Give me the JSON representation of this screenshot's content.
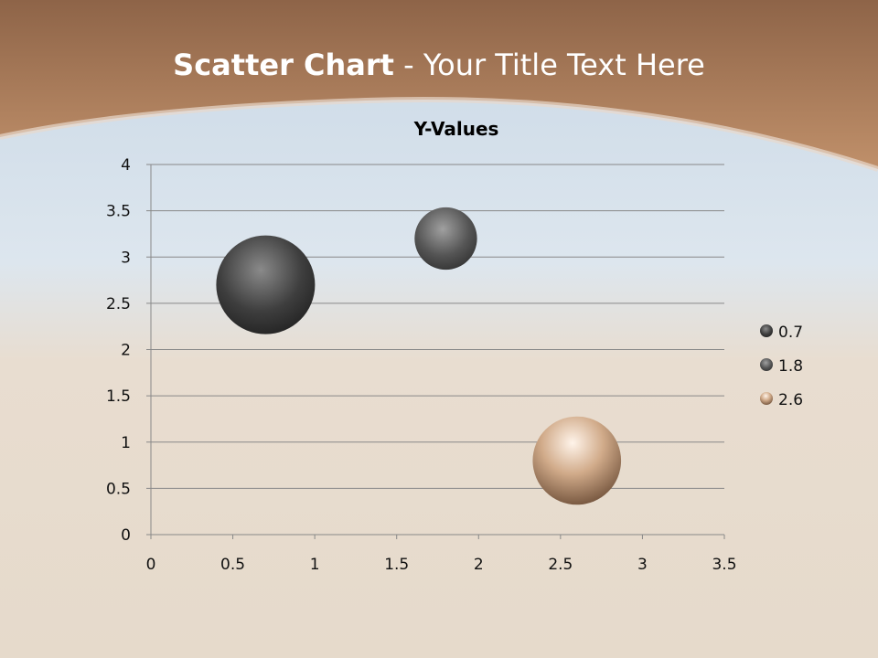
{
  "slide": {
    "title_bold": "Scatter Chart",
    "title_rest": " - Your Title Text Here"
  },
  "colors": {
    "header": "#a87b5a",
    "series": [
      "#4a4a4a",
      "#5a5a5a",
      "#c9a07e"
    ]
  },
  "chart_data": {
    "type": "bubble",
    "title": "Y-Values",
    "x": [
      0.7,
      1.8,
      2.6
    ],
    "y": [
      2.7,
      3.2,
      0.8
    ],
    "size": [
      10,
      4,
      8
    ],
    "xlim": [
      0,
      3.5
    ],
    "ylim": [
      0,
      4
    ],
    "xticks": [
      "0",
      "0.5",
      "1",
      "1.5",
      "2",
      "2.5",
      "3",
      "3.5"
    ],
    "yticks": [
      "0",
      "0.5",
      "1",
      "1.5",
      "2",
      "2.5",
      "3",
      "3.5",
      "4"
    ],
    "grid": "horizontal",
    "legend": {
      "placement": "right",
      "entries": [
        "0.7",
        "1.8",
        "2.6"
      ]
    }
  }
}
